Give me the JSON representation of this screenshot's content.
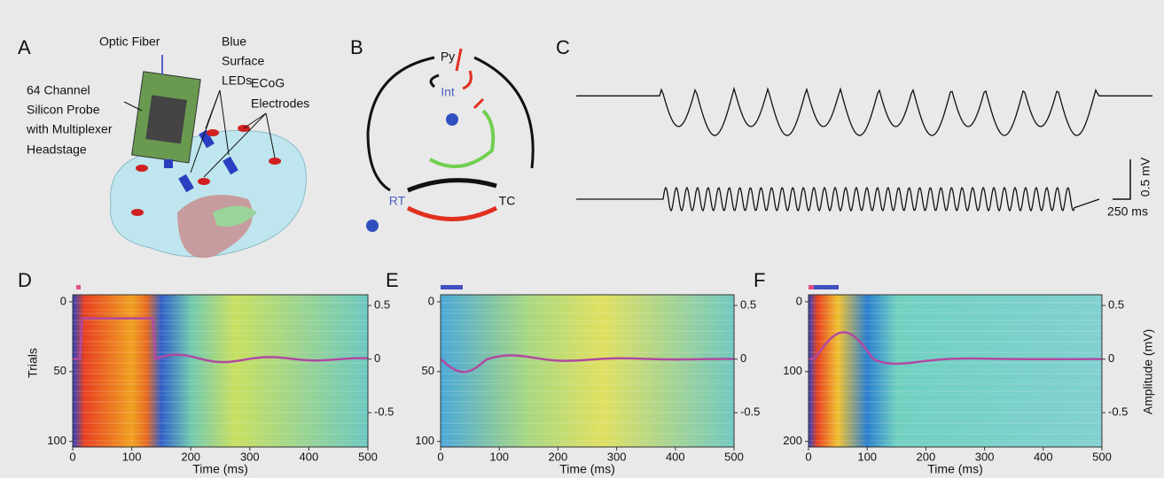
{
  "panels": {
    "A": {
      "label": "A",
      "texts": [
        "Optic Fiber",
        "Blue",
        "Surface",
        "LEDs",
        "64 Channel",
        "Silicon Probe",
        "with Multiplexer",
        "Headstage",
        "ECoG",
        "Electrodes"
      ]
    },
    "B": {
      "label": "B",
      "nodes": [
        "Py",
        "Int",
        "RT",
        "TC"
      ]
    },
    "C": {
      "label": "C",
      "scale_y": "0.5 mV",
      "scale_x": "250 ms"
    },
    "D": {
      "label": "D",
      "xlabel": "Time (ms)",
      "ylabel": "Trials",
      "xlim": [
        0,
        500
      ],
      "xticks": [
        0,
        100,
        200,
        300,
        400,
        500
      ],
      "ylim": [
        -5,
        104
      ],
      "yticks": [
        0,
        50,
        100
      ],
      "y2lim": [
        -0.82,
        0.6
      ],
      "y2ticks": [
        0.5,
        0,
        -0.5
      ]
    },
    "E": {
      "label": "E",
      "xlabel": "Time (ms)",
      "xlim": [
        0,
        500
      ],
      "xticks": [
        0,
        100,
        200,
        300,
        400,
        500
      ],
      "ylim": [
        -5,
        104
      ],
      "yticks": [
        0,
        50,
        100
      ],
      "y2lim": [
        -0.82,
        0.6
      ],
      "y2ticks": [
        0.5,
        0,
        -0.5
      ]
    },
    "F": {
      "label": "F",
      "xlabel": "Time (ms)",
      "y2label": "Amplitude (mV)",
      "xlim": [
        0,
        500
      ],
      "xticks": [
        0,
        100,
        200,
        300,
        400,
        500
      ],
      "ylim": [
        -10,
        208
      ],
      "yticks": [
        0,
        100,
        200
      ],
      "y2lim": [
        -0.82,
        0.6
      ],
      "y2ticks": [
        0.5,
        0,
        -0.5
      ]
    }
  }
}
